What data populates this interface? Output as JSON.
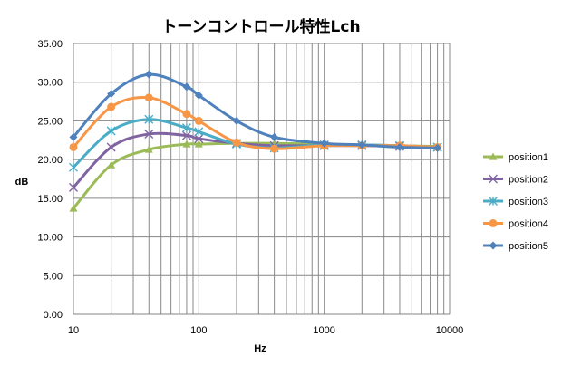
{
  "chart_data": {
    "type": "line",
    "title": "トーンコントロール特性Lch",
    "xlabel": "Hz",
    "ylabel": "dB",
    "x_scale": "log",
    "xlim": [
      10,
      10000
    ],
    "ylim": [
      0,
      35
    ],
    "x_tick_labels": [
      "10",
      "100",
      "1000",
      "10000"
    ],
    "y_tick_labels": [
      "0.00",
      "5.00",
      "10.00",
      "15.00",
      "20.00",
      "25.00",
      "30.00",
      "35.00"
    ],
    "grid": true,
    "legend_position": "right",
    "x": [
      10,
      20,
      40,
      80,
      100,
      200,
      400,
      1000,
      2000,
      4000,
      8000
    ],
    "series": [
      {
        "name": "position1",
        "color": "#9BBB59",
        "marker": "triangle",
        "values": [
          13.7,
          19.3,
          21.3,
          22.0,
          22.0,
          22.1,
          22.1,
          22.0,
          21.9,
          21.8,
          21.7
        ]
      },
      {
        "name": "position2",
        "color": "#8064A2",
        "marker": "x",
        "values": [
          16.4,
          21.6,
          23.3,
          23.1,
          22.7,
          22.1,
          21.8,
          21.8,
          21.8,
          21.7,
          21.6
        ]
      },
      {
        "name": "position3",
        "color": "#4BACC6",
        "marker": "star",
        "values": [
          19.0,
          23.7,
          25.2,
          24.1,
          23.6,
          22.0,
          21.5,
          21.9,
          21.9,
          21.8,
          21.6
        ]
      },
      {
        "name": "position4",
        "color": "#F79646",
        "marker": "circle",
        "values": [
          21.6,
          26.8,
          28.0,
          25.9,
          25.0,
          22.2,
          21.4,
          21.8,
          21.8,
          21.8,
          21.6
        ]
      },
      {
        "name": "position5",
        "color": "#4F81BD",
        "marker": "diamond",
        "values": [
          22.9,
          28.5,
          31.0,
          29.4,
          28.3,
          25.0,
          22.9,
          22.1,
          21.9,
          21.6,
          21.5
        ]
      }
    ]
  }
}
